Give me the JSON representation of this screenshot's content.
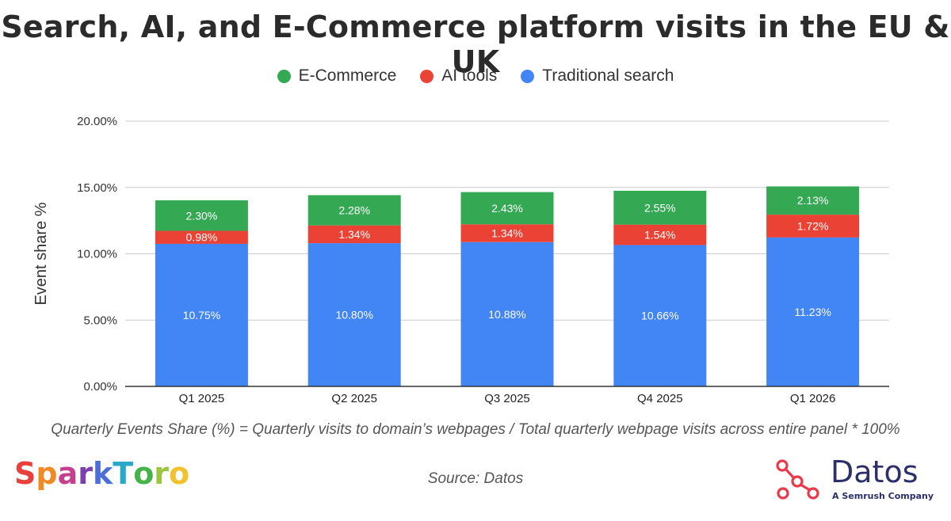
{
  "title": "Search, AI, and E-Commerce platform visits in the EU & UK",
  "legend": [
    {
      "label": "E-Commerce",
      "color": "#34a853"
    },
    {
      "label": "AI tools",
      "color": "#ea4335"
    },
    {
      "label": "Traditional search",
      "color": "#4285f4"
    }
  ],
  "chart_data": {
    "type": "bar",
    "stacked": true,
    "categories": [
      "Q1 2025",
      "Q2 2025",
      "Q3 2025",
      "Q4 2025",
      "Q1 2026"
    ],
    "series": [
      {
        "name": "Traditional search",
        "color": "#4285f4",
        "values": [
          10.75,
          10.8,
          10.88,
          10.66,
          11.23
        ],
        "labels": [
          "10.75%",
          "10.80%",
          "10.88%",
          "10.66%",
          "11.23%"
        ]
      },
      {
        "name": "AI tools",
        "color": "#ea4335",
        "values": [
          0.98,
          1.34,
          1.34,
          1.54,
          1.72
        ],
        "labels": [
          "0.98%",
          "1.34%",
          "1.34%",
          "1.54%",
          "1.72%"
        ]
      },
      {
        "name": "E-Commerce",
        "color": "#34a853",
        "values": [
          2.3,
          2.28,
          2.43,
          2.55,
          2.13
        ],
        "labels": [
          "2.30%",
          "2.28%",
          "2.43%",
          "2.55%",
          "2.13%"
        ]
      }
    ],
    "ylabel": "Event share %",
    "ylim": [
      0,
      20
    ],
    "yticks": [
      0,
      5,
      10,
      15,
      20
    ],
    "ytick_labels": [
      "0.00%",
      "5.00%",
      "10.00%",
      "15.00%",
      "20.00%"
    ],
    "grid": true,
    "legend_position": "top-center"
  },
  "formula_note": "Quarterly Events Share (%) = Quarterly visits to domain’s webpages / Total quarterly webpage visits across entire panel * 100%",
  "source_note": "Source: Datos",
  "logos": {
    "sparktoro": {
      "text": "SparkToro",
      "colors": [
        "#e8413c",
        "#f08a24",
        "#c43f8e",
        "#7b3fb0",
        "#4b6fd6",
        "#2aa7c9",
        "#45b34a",
        "#9bc53d",
        "#f2c12e"
      ]
    },
    "datos": {
      "name": "Datos",
      "subtitle": "A Semrush Company",
      "icon": "network-nodes-icon",
      "icon_color": "#e83a4a",
      "text_color": "#2c2f6b"
    }
  }
}
